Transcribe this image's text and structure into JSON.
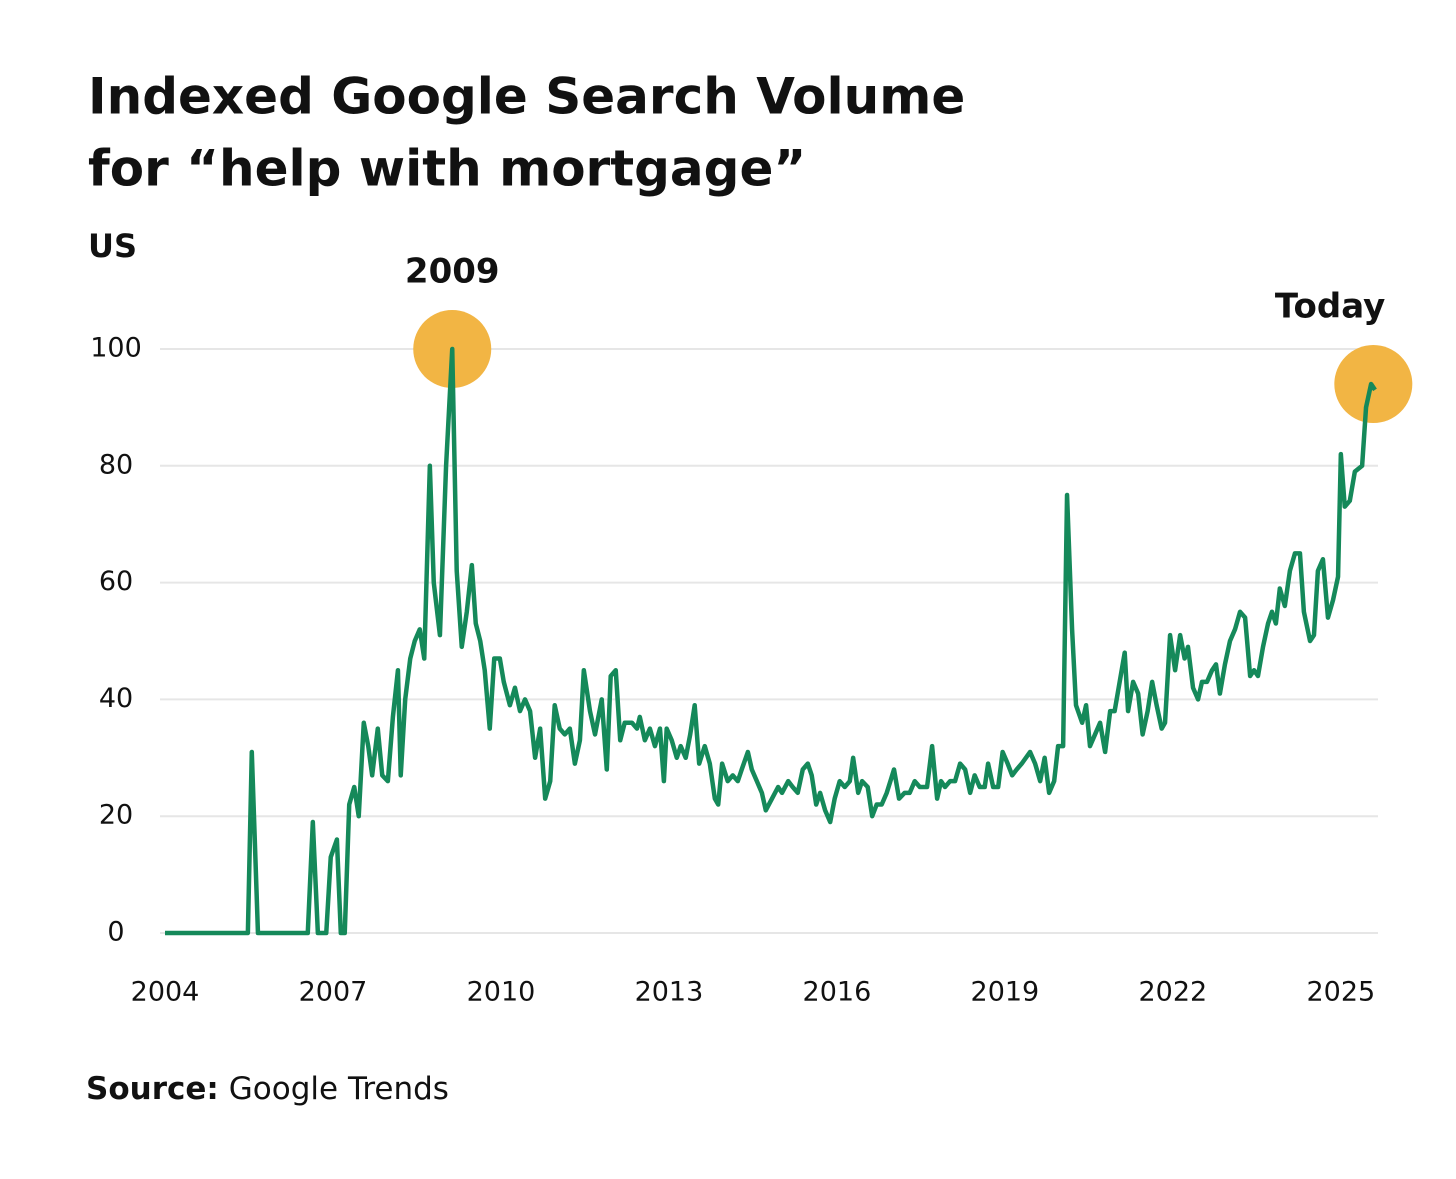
{
  "chart_data": {
    "type": "line",
    "title": [
      "Indexed Google Search Volume",
      "for “help with mortgage”"
    ],
    "subtitle": "US",
    "source_label": "Source:",
    "source": "Google Trends",
    "xlim": [
      2004,
      2025.61
    ],
    "xticks": [
      2004,
      2007,
      2010,
      2013,
      2016,
      2019,
      2022,
      2025
    ],
    "ylim": [
      0,
      100
    ],
    "yticks": [
      0,
      20,
      40,
      60,
      80,
      100
    ],
    "grid": true,
    "highlight_color": "#f2b544",
    "annotations": [
      {
        "text": "2009",
        "x": 2009.13,
        "y": 100
      },
      {
        "text": "Today",
        "x": 2025.58,
        "y": 94
      }
    ],
    "series": [
      {
        "name": "help with mortgage",
        "color": "#15895a",
        "x": [
          2004.0,
          2005.48,
          2005.55,
          2005.66,
          2006.55,
          2006.64,
          2006.73,
          2006.88,
          2006.96,
          2007.07,
          2007.14,
          2007.21,
          2007.29,
          2007.38,
          2007.46,
          2007.55,
          2007.63,
          2007.7,
          2007.8,
          2007.88,
          2007.98,
          2008.07,
          2008.16,
          2008.21,
          2008.29,
          2008.38,
          2008.46,
          2008.55,
          2008.63,
          2008.73,
          2008.8,
          2008.91,
          2009.02,
          2009.13,
          2009.21,
          2009.3,
          2009.39,
          2009.48,
          2009.55,
          2009.63,
          2009.71,
          2009.8,
          2009.88,
          2009.98,
          2010.05,
          2010.16,
          2010.25,
          2010.34,
          2010.43,
          2010.52,
          2010.61,
          2010.7,
          2010.79,
          2010.88,
          2010.96,
          2011.05,
          2011.14,
          2011.23,
          2011.32,
          2011.41,
          2011.48,
          2011.59,
          2011.68,
          2011.8,
          2011.89,
          2011.96,
          2012.05,
          2012.13,
          2012.21,
          2012.34,
          2012.43,
          2012.48,
          2012.57,
          2012.66,
          2012.75,
          2012.84,
          2012.91,
          2012.96,
          2013.05,
          2013.14,
          2013.21,
          2013.3,
          2013.38,
          2013.46,
          2013.54,
          2013.64,
          2013.73,
          2013.82,
          2013.88,
          2013.95,
          2014.05,
          2014.14,
          2014.23,
          2014.3,
          2014.41,
          2014.48,
          2014.57,
          2014.66,
          2014.73,
          2014.84,
          2014.95,
          2015.02,
          2015.13,
          2015.21,
          2015.3,
          2015.39,
          2015.48,
          2015.55,
          2015.63,
          2015.7,
          2015.79,
          2015.88,
          2015.96,
          2016.05,
          2016.14,
          2016.23,
          2016.29,
          2016.38,
          2016.45,
          2016.55,
          2016.63,
          2016.71,
          2016.8,
          2016.89,
          2017.02,
          2017.11,
          2017.21,
          2017.3,
          2017.39,
          2017.48,
          2017.61,
          2017.7,
          2017.79,
          2017.86,
          2017.93,
          2018.02,
          2018.11,
          2018.2,
          2018.29,
          2018.38,
          2018.46,
          2018.55,
          2018.64,
          2018.7,
          2018.79,
          2018.88,
          2018.96,
          2019.05,
          2019.13,
          2019.21,
          2019.3,
          2019.45,
          2019.54,
          2019.63,
          2019.71,
          2019.79,
          2019.88,
          2019.95,
          2020.04,
          2020.11,
          2020.2,
          2020.27,
          2020.38,
          2020.45,
          2020.52,
          2020.61,
          2020.7,
          2020.79,
          2020.88,
          2020.96,
          2021.05,
          2021.14,
          2021.2,
          2021.29,
          2021.38,
          2021.46,
          2021.55,
          2021.63,
          2021.71,
          2021.8,
          2021.86,
          2021.95,
          2022.04,
          2022.13,
          2022.21,
          2022.27,
          2022.36,
          2022.45,
          2022.52,
          2022.61,
          2022.7,
          2022.77,
          2022.84,
          2022.93,
          2023.02,
          2023.11,
          2023.2,
          2023.29,
          2023.38,
          2023.45,
          2023.52,
          2023.61,
          2023.7,
          2023.77,
          2023.84,
          2023.91,
          2024.0,
          2024.09,
          2024.18,
          2024.27,
          2024.34,
          2024.45,
          2024.52,
          2024.59,
          2024.68,
          2024.77,
          2024.86,
          2024.95,
          2025.0,
          2025.07,
          2025.16,
          2025.25,
          2025.38,
          2025.45,
          2025.54,
          2025.61
        ],
        "values": [
          0,
          0,
          31,
          0,
          0,
          19,
          0,
          0,
          13,
          16,
          0,
          0,
          22,
          25,
          20,
          36,
          32,
          27,
          35,
          27,
          26,
          37,
          45,
          27,
          40,
          47,
          50,
          52,
          47,
          80,
          60,
          51,
          80,
          100,
          62,
          49,
          55,
          63,
          53,
          50,
          45,
          35,
          47,
          47,
          43,
          39,
          42,
          38,
          40,
          38,
          30,
          35,
          23,
          26,
          39,
          35,
          34,
          35,
          29,
          33,
          45,
          38,
          34,
          40,
          28,
          44,
          45,
          33,
          36,
          36,
          35,
          37,
          33,
          35,
          32,
          35,
          26,
          35,
          33,
          30,
          32,
          30,
          34,
          39,
          29,
          32,
          29,
          23,
          22,
          29,
          26,
          27,
          26,
          28,
          31,
          28,
          26,
          24,
          21,
          23,
          25,
          24,
          26,
          25,
          24,
          28,
          29,
          27,
          22,
          24,
          21,
          19,
          23,
          26,
          25,
          26,
          30,
          24,
          26,
          25,
          20,
          22,
          22,
          24,
          28,
          23,
          24,
          24,
          26,
          25,
          25,
          32,
          23,
          26,
          25,
          26,
          26,
          29,
          28,
          24,
          27,
          25,
          25,
          29,
          25,
          25,
          31,
          29,
          27,
          28,
          29,
          31,
          29,
          26,
          30,
          24,
          26,
          32,
          32,
          75,
          52,
          39,
          36,
          39,
          32,
          34,
          36,
          31,
          38,
          38,
          43,
          48,
          38,
          43,
          41,
          34,
          38,
          43,
          39,
          35,
          36,
          51,
          45,
          51,
          47,
          49,
          42,
          40,
          43,
          43,
          45,
          46,
          41,
          46,
          50,
          52,
          55,
          54,
          44,
          45,
          44,
          49,
          53,
          55,
          53,
          59,
          56,
          62,
          65,
          65,
          55,
          50,
          51,
          62,
          64,
          54,
          57,
          61,
          82,
          73,
          74,
          79,
          80,
          90,
          94,
          93
        ]
      }
    ]
  }
}
